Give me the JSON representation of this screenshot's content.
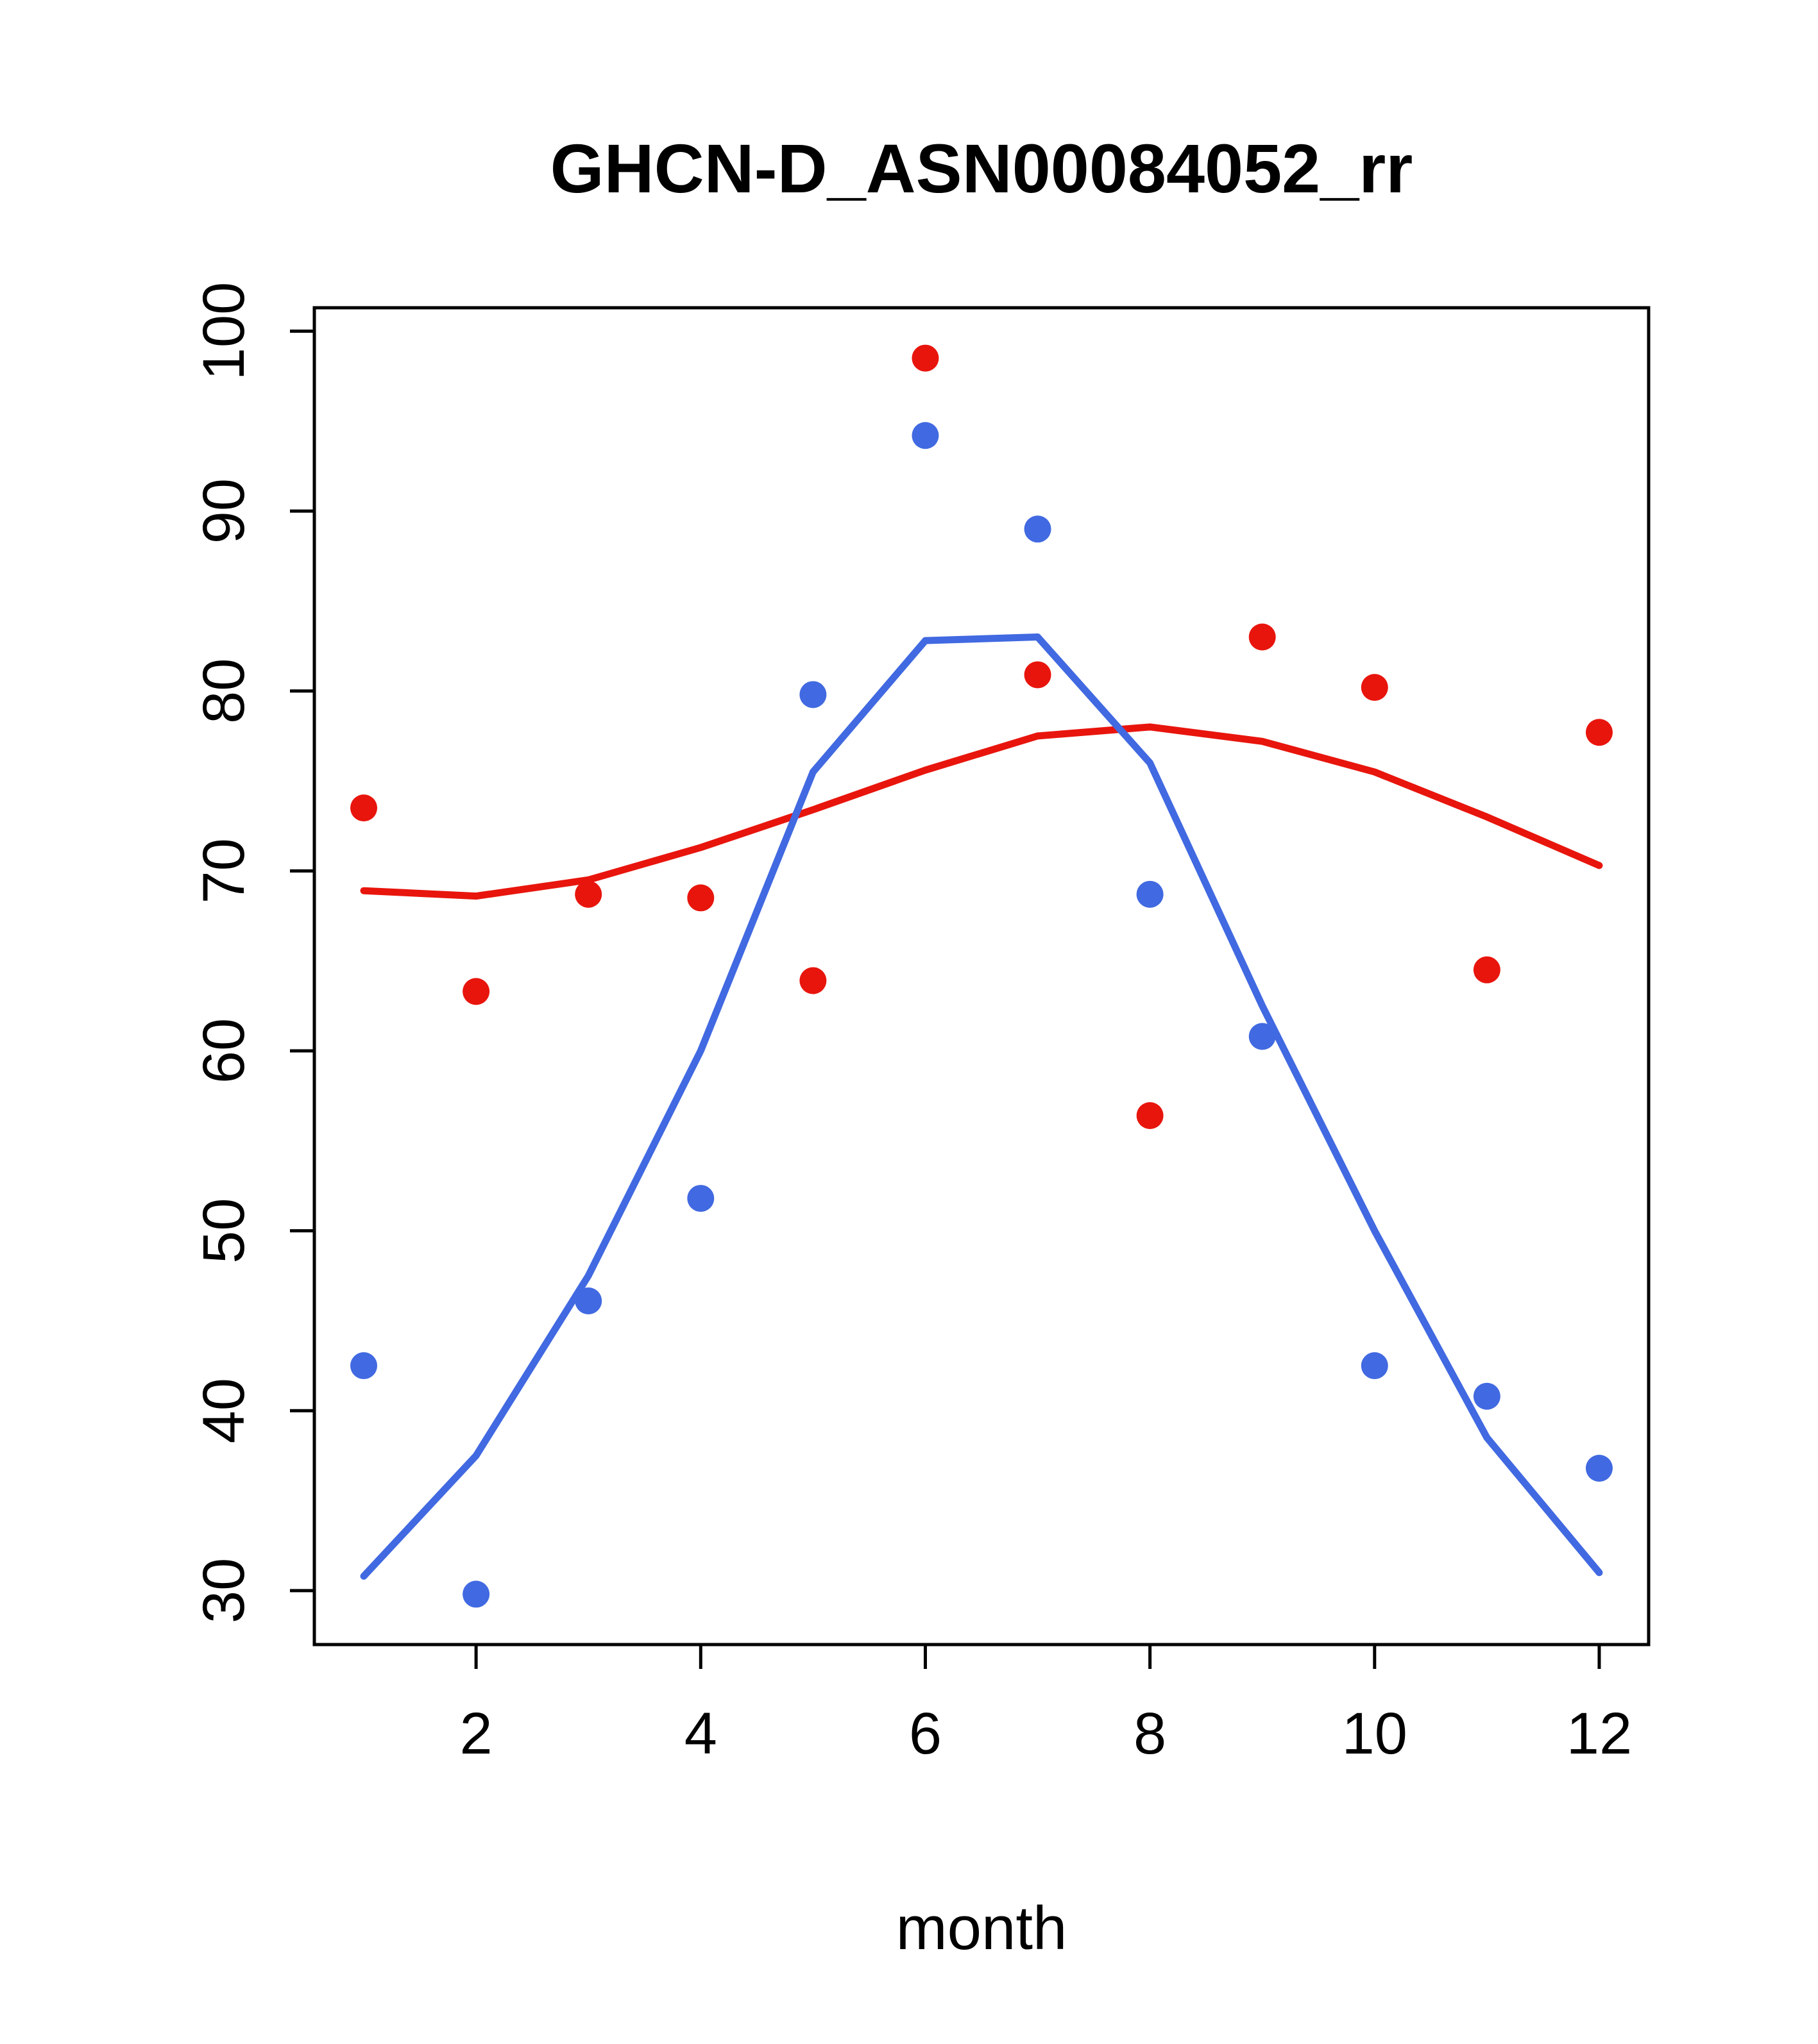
{
  "title": "GHCN-D_ASN00084052_rr",
  "xlabel": "month",
  "colors": {
    "red": "#e8150d",
    "blue": "#4169e1",
    "axis": "#000000",
    "background": "#ffffff"
  },
  "chart_data": {
    "type": "scatter",
    "title": "GHCN-D_ASN00084052_rr",
    "xlabel": "month",
    "ylabel": "",
    "x": [
      1,
      2,
      3,
      4,
      5,
      6,
      7,
      8,
      9,
      10,
      11,
      12
    ],
    "series": [
      {
        "name": "red-points",
        "kind": "points",
        "color": "#e8150d",
        "values": [
          73.5,
          63.3,
          68.7,
          68.5,
          63.9,
          98.5,
          80.9,
          56.4,
          83.0,
          80.2,
          64.5,
          77.7
        ]
      },
      {
        "name": "blue-points",
        "kind": "points",
        "color": "#4169e1",
        "values": [
          42.5,
          29.8,
          46.1,
          51.8,
          79.8,
          94.2,
          89.0,
          68.7,
          60.8,
          42.5,
          40.8,
          36.8
        ]
      },
      {
        "name": "red-trend-line",
        "kind": "line",
        "color": "#e8150d",
        "values": [
          68.9,
          68.6,
          69.5,
          71.3,
          73.4,
          75.6,
          77.5,
          78.0,
          77.2,
          75.5,
          73.0,
          70.3
        ]
      },
      {
        "name": "blue-trend-line",
        "kind": "line",
        "color": "#4169e1",
        "values": [
          30.8,
          37.5,
          47.5,
          60.0,
          75.5,
          82.8,
          83.0,
          76.0,
          62.5,
          50.0,
          38.5,
          31.0
        ]
      }
    ],
    "xticks": [
      2,
      4,
      6,
      8,
      10,
      12
    ],
    "yticks": [
      30,
      40,
      50,
      60,
      70,
      80,
      90,
      100
    ],
    "xlim": [
      0.56,
      12.44
    ],
    "ylim": [
      27.0,
      101.3
    ],
    "grid": false,
    "legend": "none"
  }
}
